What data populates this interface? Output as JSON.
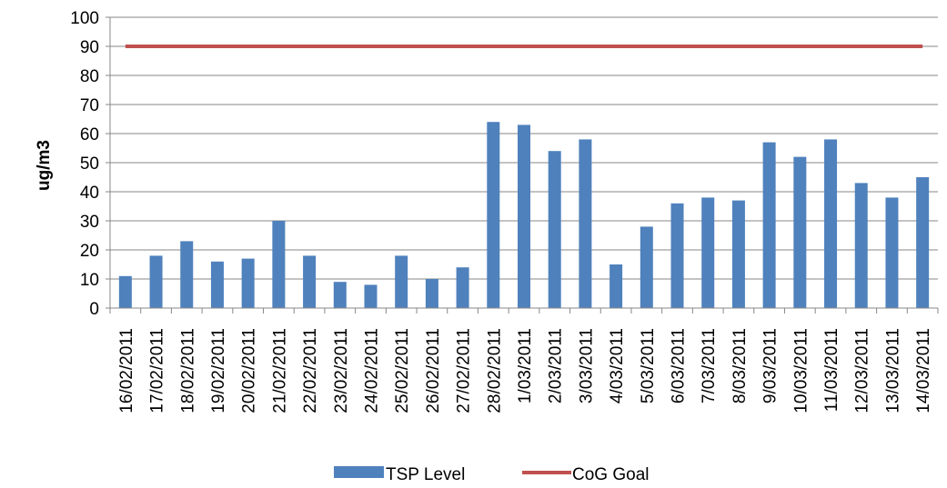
{
  "chart_data": {
    "type": "bar",
    "title": "",
    "xlabel": "",
    "ylabel": "ug/m3",
    "ylim": [
      0,
      100
    ],
    "yticks": [
      0,
      10,
      20,
      30,
      40,
      50,
      60,
      70,
      80,
      90,
      100
    ],
    "grid": true,
    "legend_position": "bottom",
    "categories": [
      "16/02/2011",
      "17/02/2011",
      "18/02/2011",
      "19/02/2011",
      "20/02/2011",
      "21/02/2011",
      "22/02/2011",
      "23/02/2011",
      "24/02/2011",
      "25/02/2011",
      "26/02/2011",
      "27/02/2011",
      "28/02/2011",
      "1/03/2011",
      "2/03/2011",
      "3/03/2011",
      "4/03/2011",
      "5/03/2011",
      "6/03/2011",
      "7/03/2011",
      "8/03/2011",
      "9/03/2011",
      "10/03/2011",
      "11/03/2011",
      "12/03/2011",
      "13/03/2011",
      "14/03/2011"
    ],
    "series": [
      {
        "name": "TSP Level",
        "kind": "bar",
        "color": "#4F81BD",
        "values": [
          11,
          18,
          23,
          16,
          17,
          30,
          18,
          9,
          8,
          18,
          10,
          14,
          64,
          63,
          54,
          58,
          15,
          28,
          36,
          38,
          37,
          57,
          52,
          58,
          43,
          38,
          45
        ]
      },
      {
        "name": "CoG Goal",
        "kind": "line",
        "color": "#C0504D",
        "values": [
          90,
          90,
          90,
          90,
          90,
          90,
          90,
          90,
          90,
          90,
          90,
          90,
          90,
          90,
          90,
          90,
          90,
          90,
          90,
          90,
          90,
          90,
          90,
          90,
          90,
          90,
          90
        ]
      }
    ]
  }
}
